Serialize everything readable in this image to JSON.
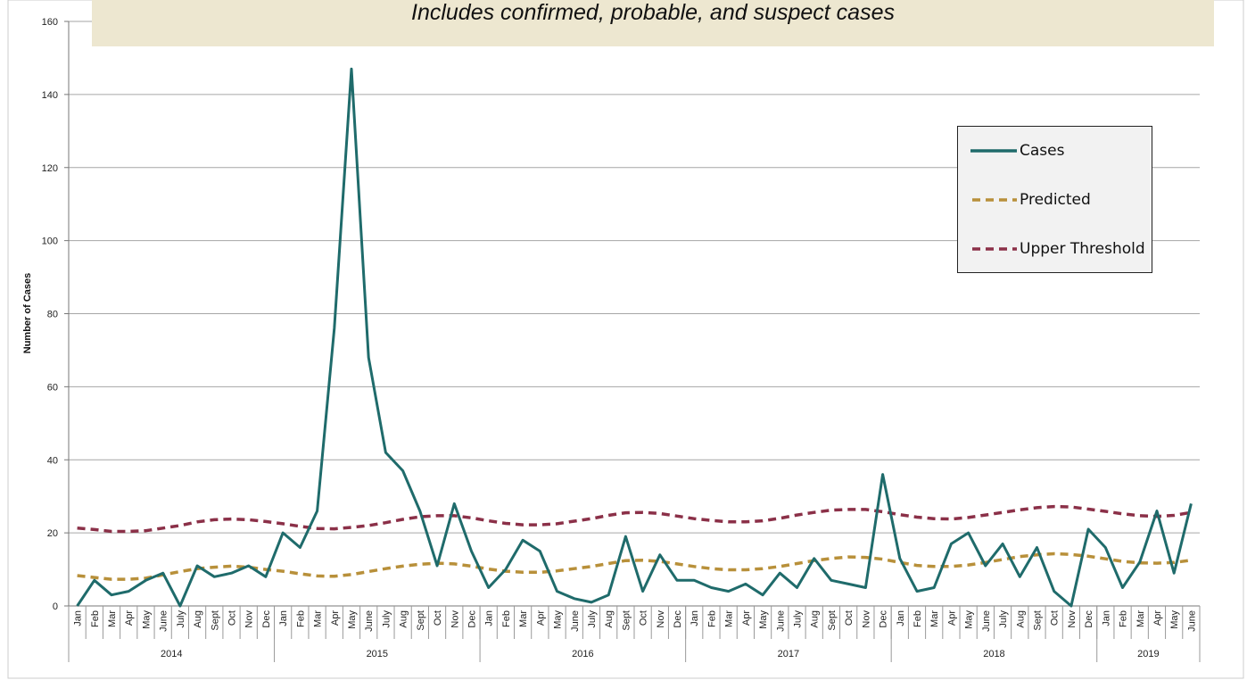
{
  "subtitle": "Includes confirmed, probable, and suspect cases",
  "chart_data": {
    "type": "line",
    "ylabel": "Number of Cases",
    "xlabel": "",
    "ylim": [
      0,
      160
    ],
    "yticks": [
      0,
      20,
      40,
      60,
      80,
      100,
      120,
      140,
      160
    ],
    "grid": true,
    "legend_position": "top-right",
    "months": [
      "Jan",
      "Feb",
      "Mar",
      "Apr",
      "May",
      "June",
      "July",
      "Aug",
      "Sept",
      "Oct",
      "Nov",
      "Dec",
      "Jan",
      "Feb",
      "Mar",
      "Apr",
      "May",
      "June",
      "July",
      "Aug",
      "Sept",
      "Oct",
      "Nov",
      "Dec",
      "Jan",
      "Feb",
      "Mar",
      "Apr",
      "May",
      "June",
      "July",
      "Aug",
      "Sept",
      "Oct",
      "Nov",
      "Dec",
      "Jan",
      "Feb",
      "Mar",
      "Apr",
      "May",
      "June",
      "July",
      "Aug",
      "Sept",
      "Oct",
      "Nov",
      "Dec",
      "Jan",
      "Feb",
      "Mar",
      "Apr",
      "May",
      "June",
      "July",
      "Aug",
      "Sept",
      "Oct",
      "Nov",
      "Dec",
      "Jan",
      "Feb",
      "Mar",
      "Apr",
      "May",
      "June"
    ],
    "years": [
      {
        "label": "2014",
        "months": 12
      },
      {
        "label": "2015",
        "months": 12
      },
      {
        "label": "2016",
        "months": 12
      },
      {
        "label": "2017",
        "months": 12
      },
      {
        "label": "2018",
        "months": 12
      },
      {
        "label": "2019",
        "months": 6
      }
    ],
    "series": [
      {
        "name": "Cases",
        "color": "#1f6b6b",
        "dash": false,
        "values": [
          0,
          7,
          3,
          4,
          7,
          9,
          0,
          11,
          8,
          9,
          11,
          8,
          20,
          16,
          26,
          76,
          147,
          68,
          42,
          37,
          26,
          11,
          28,
          15,
          5,
          10,
          18,
          15,
          4,
          2,
          1,
          3,
          19,
          4,
          14,
          7,
          7,
          5,
          4,
          6,
          3,
          9,
          5,
          13,
          7,
          6,
          5,
          36,
          13,
          4,
          5,
          17,
          20,
          11,
          17,
          8,
          16,
          4,
          0,
          21,
          16,
          5,
          12,
          26,
          9,
          28
        ]
      },
      {
        "name": "Predicted",
        "color": "#b8903a",
        "dash": true,
        "values": [
          8.3,
          7.8,
          7.3,
          7.3,
          7.6,
          8.5,
          9.4,
          10.2,
          10.6,
          10.9,
          10.6,
          10.0,
          9.5,
          8.8,
          8.2,
          8.1,
          8.6,
          9.4,
          10.2,
          10.9,
          11.4,
          11.7,
          11.5,
          10.9,
          10.1,
          9.5,
          9.2,
          9.2,
          9.6,
          10.2,
          10.8,
          11.6,
          12.4,
          12.5,
          12.2,
          11.5,
          10.8,
          10.2,
          9.9,
          9.9,
          10.2,
          10.8,
          11.6,
          12.4,
          13.0,
          13.4,
          13.3,
          12.8,
          11.9,
          11.1,
          10.8,
          10.8,
          11.2,
          11.9,
          12.7,
          13.5,
          14.0,
          14.3,
          14.1,
          13.6,
          12.9,
          12.2,
          11.8,
          11.7,
          11.9,
          12.5
        ]
      },
      {
        "name": "Upper Threshold",
        "color": "#8b3048",
        "dash": true,
        "values": [
          21.3,
          20.9,
          20.4,
          20.4,
          20.6,
          21.3,
          22.0,
          23.0,
          23.6,
          23.8,
          23.6,
          23.1,
          22.5,
          21.8,
          21.2,
          21.1,
          21.5,
          22.0,
          22.8,
          23.7,
          24.4,
          24.7,
          24.7,
          24.1,
          23.3,
          22.6,
          22.2,
          22.2,
          22.5,
          23.2,
          23.9,
          24.8,
          25.5,
          25.6,
          25.3,
          24.6,
          23.9,
          23.4,
          23.0,
          23.0,
          23.3,
          24.0,
          24.9,
          25.6,
          26.2,
          26.4,
          26.4,
          25.8,
          25.0,
          24.3,
          23.9,
          23.8,
          24.2,
          24.9,
          25.6,
          26.3,
          26.9,
          27.2,
          27.1,
          26.5,
          25.9,
          25.2,
          24.7,
          24.5,
          24.8,
          25.6
        ]
      }
    ]
  }
}
